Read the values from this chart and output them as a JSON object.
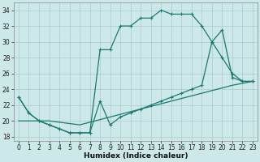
{
  "xlabel": "Humidex (Indice chaleur)",
  "bg_color": "#cce8e8",
  "grid_color": "#aacccc",
  "line_color": "#1a7a6e",
  "xlim": [
    -0.5,
    23.5
  ],
  "ylim": [
    17.5,
    35.0
  ],
  "xticks": [
    0,
    1,
    2,
    3,
    4,
    5,
    6,
    7,
    8,
    9,
    10,
    11,
    12,
    13,
    14,
    15,
    16,
    17,
    18,
    19,
    20,
    21,
    22,
    23
  ],
  "yticks": [
    18,
    20,
    22,
    24,
    26,
    28,
    30,
    32,
    34
  ],
  "curve_upper_x": [
    0,
    1,
    2,
    3,
    4,
    5,
    6,
    7,
    8,
    9,
    10,
    11,
    12,
    13,
    14,
    15,
    16,
    17,
    18,
    19,
    20,
    21,
    22,
    23
  ],
  "curve_upper_y": [
    23,
    21,
    20,
    19.5,
    19,
    18.5,
    18.5,
    18.5,
    29,
    29,
    32,
    32,
    33,
    33,
    34,
    33.5,
    33.5,
    33.5,
    32,
    30,
    28,
    26,
    25,
    25
  ],
  "curve_mid_x": [
    0,
    1,
    2,
    3,
    4,
    5,
    6,
    7,
    8,
    9,
    10,
    11,
    12,
    13,
    14,
    15,
    16,
    17,
    18,
    19,
    20,
    21,
    22,
    23
  ],
  "curve_mid_y": [
    23,
    21,
    20,
    19.5,
    19,
    18.5,
    18.5,
    18.5,
    22.5,
    19.5,
    20.5,
    21,
    21.5,
    22,
    22.5,
    23,
    23.5,
    24,
    24.5,
    30,
    31.5,
    25.5,
    25,
    25
  ],
  "curve_low_x": [
    0,
    3,
    6,
    9,
    12,
    15,
    18,
    21,
    23
  ],
  "curve_low_y": [
    20,
    20,
    19.5,
    20.5,
    21.5,
    22.5,
    23.5,
    24.5,
    25
  ]
}
